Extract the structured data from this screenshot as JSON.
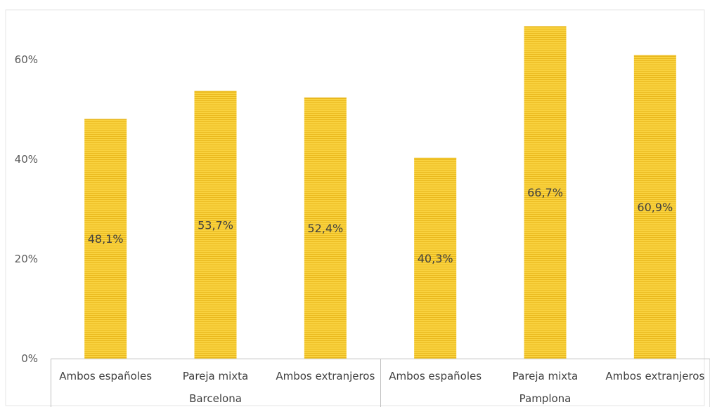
{
  "chart_data": {
    "type": "bar",
    "groups": [
      "Barcelona",
      "Pamplona"
    ],
    "categories": [
      "Ambos españoles",
      "Pareja mixta",
      "Ambos extranjeros"
    ],
    "series": [
      {
        "group": "Barcelona",
        "values": [
          48.1,
          53.7,
          52.4
        ]
      },
      {
        "group": "Pamplona",
        "values": [
          40.3,
          66.7,
          60.9
        ]
      }
    ],
    "data_labels": {
      "Barcelona": [
        "48,1%",
        "53,7%",
        "52,4%"
      ],
      "Pamplona": [
        "40,3%",
        "66,7%",
        "60,9%"
      ]
    },
    "title": "",
    "xlabel": "",
    "ylabel": "",
    "ylim": [
      0,
      70
    ],
    "yticks": [
      0,
      20,
      40,
      60
    ],
    "ytick_labels": [
      "0%",
      "20%",
      "40%",
      "60%"
    ],
    "grid": false,
    "bar_color": "#f9d23f",
    "bar_stripe_color": "#e9b81d"
  }
}
